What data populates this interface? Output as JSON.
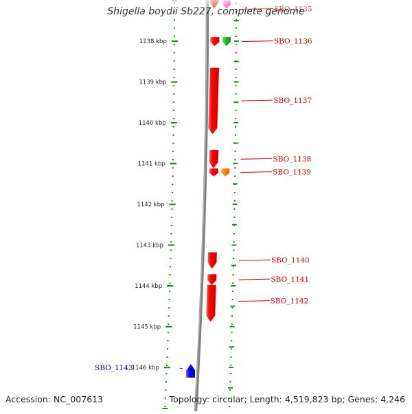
{
  "title": "Shigella boydii Sb227, complete genome",
  "footer": {
    "accession": "Accession: NC_007613",
    "topology": "Topology: circular; Length: 4,519,823 bp; Genes: 4,246"
  },
  "colors": {
    "forward_gene": "#ff0000",
    "reverse_gene": "#0000ff",
    "pink_gene": "#ff2aa0",
    "green_gene": "#22c022",
    "orange_gene": "#ff8800",
    "tick": "#1e8c1e",
    "backbone": "#808080",
    "label_forward": "#cc0000",
    "label_reverse": "#0000aa"
  },
  "axis": {
    "ticks": [
      {
        "kbp": 1138,
        "label": "1138 kbp"
      },
      {
        "kbp": 1139,
        "label": "1139 kbp"
      },
      {
        "kbp": 1140,
        "label": "1140 kbp"
      },
      {
        "kbp": 1141,
        "label": "1141 kbp"
      },
      {
        "kbp": 1142,
        "label": "1142 kbp"
      },
      {
        "kbp": 1143,
        "label": "1143 kbp"
      },
      {
        "kbp": 1144,
        "label": "1144 kbp"
      },
      {
        "kbp": 1145,
        "label": "1145 kbp"
      },
      {
        "kbp": 1146,
        "label": "1146 kbp"
      }
    ]
  },
  "genes": [
    {
      "label": "SBO_1135",
      "start_kbp": 1137.0,
      "end_kbp": 1137.2,
      "strand": "+",
      "color": "pink_gene",
      "track": "outer"
    },
    {
      "label": "SBO_1136",
      "start_kbp": 1137.9,
      "end_kbp": 1138.12,
      "strand": "+",
      "color": "green_gene",
      "track": "outer"
    },
    {
      "label": "SBO_1137",
      "start_kbp": 1138.65,
      "end_kbp": 1140.28,
      "strand": "+",
      "color": "forward_gene",
      "track": "inner"
    },
    {
      "label": "SBO_1138",
      "start_kbp": 1140.67,
      "end_kbp": 1141.12,
      "strand": "+",
      "color": "forward_gene",
      "track": "inner"
    },
    {
      "label": "SBO_1139",
      "start_kbp": 1141.12,
      "end_kbp": 1141.32,
      "strand": "+",
      "color": "orange_gene",
      "track": "outer"
    },
    {
      "label": "SBO_1140",
      "start_kbp": 1143.18,
      "end_kbp": 1143.58,
      "strand": "+",
      "color": "forward_gene",
      "track": "inner"
    },
    {
      "label": "SBO_1141",
      "start_kbp": 1143.72,
      "end_kbp": 1143.98,
      "strand": "+",
      "color": "forward_gene",
      "track": "inner"
    },
    {
      "label": "SBO_1142",
      "start_kbp": 1143.98,
      "end_kbp": 1144.88,
      "strand": "+",
      "color": "forward_gene",
      "track": "inner"
    },
    {
      "label": "SBO_1143",
      "start_kbp": 1145.92,
      "end_kbp": 1146.25,
      "strand": "-",
      "color": "reverse_gene",
      "track": "reverse"
    }
  ],
  "unlabeled_genes": [
    {
      "start_kbp": 1136.5,
      "end_kbp": 1137.2,
      "strand": "+",
      "color": "forward_gene",
      "track": "inner"
    },
    {
      "start_kbp": 1136.5,
      "end_kbp": 1137.0,
      "strand": "+",
      "color": "pink_gene",
      "track": "outer"
    },
    {
      "start_kbp": 1137.9,
      "end_kbp": 1138.12,
      "strand": "+",
      "color": "forward_gene",
      "track": "inner"
    },
    {
      "start_kbp": 1141.12,
      "end_kbp": 1141.32,
      "strand": "+",
      "color": "forward_gene",
      "track": "inner"
    }
  ]
}
